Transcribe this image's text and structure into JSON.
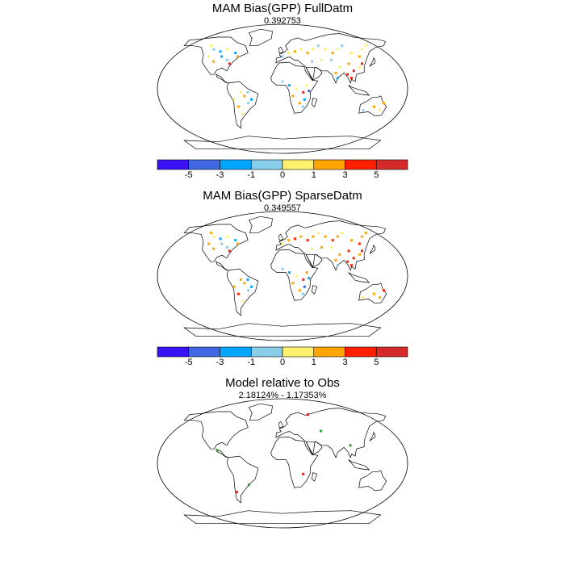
{
  "panels": [
    {
      "title": "MAM Bias(GPP) FullDatm",
      "subtitle": "0.392753",
      "has_colorbar": true,
      "points": [
        {
          "lon": -120,
          "lat": 60,
          "bin": 4
        },
        {
          "lon": -112,
          "lat": 55,
          "bin": 3
        },
        {
          "lon": -100,
          "lat": 52,
          "bin": 2
        },
        {
          "lon": -95,
          "lat": 45,
          "bin": 2
        },
        {
          "lon": -85,
          "lat": 40,
          "bin": 3
        },
        {
          "lon": -80,
          "lat": 35,
          "bin": 6
        },
        {
          "lon": -105,
          "lat": 38,
          "bin": 5
        },
        {
          "lon": -90,
          "lat": 55,
          "bin": 4
        },
        {
          "lon": -75,
          "lat": 50,
          "bin": 2
        },
        {
          "lon": -70,
          "lat": 45,
          "bin": 5
        },
        {
          "lon": -115,
          "lat": 45,
          "bin": 4
        },
        {
          "lon": -60,
          "lat": -5,
          "bin": 4
        },
        {
          "lon": -55,
          "lat": -10,
          "bin": 5
        },
        {
          "lon": -50,
          "lat": -20,
          "bin": 3
        },
        {
          "lon": -65,
          "lat": -25,
          "bin": 5
        },
        {
          "lon": -45,
          "lat": -15,
          "bin": 2
        },
        {
          "lon": -60,
          "lat": -35,
          "bin": 4
        },
        {
          "lon": -70,
          "lat": -15,
          "bin": 4
        },
        {
          "lon": -50,
          "lat": -5,
          "bin": 3
        },
        {
          "lon": 0,
          "lat": 45,
          "bin": 3
        },
        {
          "lon": 10,
          "lat": 50,
          "bin": 4
        },
        {
          "lon": 20,
          "lat": 52,
          "bin": 5
        },
        {
          "lon": 30,
          "lat": 55,
          "bin": 4
        },
        {
          "lon": 40,
          "lat": 50,
          "bin": 5
        },
        {
          "lon": 50,
          "lat": 55,
          "bin": 4
        },
        {
          "lon": 60,
          "lat": 60,
          "bin": 3
        },
        {
          "lon": 70,
          "lat": 55,
          "bin": 4
        },
        {
          "lon": 80,
          "lat": 50,
          "bin": 5
        },
        {
          "lon": 90,
          "lat": 55,
          "bin": 4
        },
        {
          "lon": 100,
          "lat": 60,
          "bin": 3
        },
        {
          "lon": 110,
          "lat": 50,
          "bin": 4
        },
        {
          "lon": 120,
          "lat": 45,
          "bin": 5
        },
        {
          "lon": 130,
          "lat": 55,
          "bin": 4
        },
        {
          "lon": 75,
          "lat": 40,
          "bin": 3
        },
        {
          "lon": 85,
          "lat": 30,
          "bin": 4
        },
        {
          "lon": 100,
          "lat": 35,
          "bin": 5
        },
        {
          "lon": 115,
          "lat": 30,
          "bin": 4
        },
        {
          "lon": 120,
          "lat": 35,
          "bin": 6
        },
        {
          "lon": 105,
          "lat": 25,
          "bin": 7
        },
        {
          "lon": 95,
          "lat": 20,
          "bin": 6
        },
        {
          "lon": 78,
          "lat": 22,
          "bin": 5
        },
        {
          "lon": 80,
          "lat": 15,
          "bin": 2
        },
        {
          "lon": 100,
          "lat": 15,
          "bin": 6
        },
        {
          "lon": 60,
          "lat": 40,
          "bin": 4
        },
        {
          "lon": 45,
          "lat": 38,
          "bin": 3
        },
        {
          "lon": 140,
          "lat": 60,
          "bin": 4
        },
        {
          "lon": 0,
          "lat": 10,
          "bin": 3
        },
        {
          "lon": 10,
          "lat": 5,
          "bin": 2
        },
        {
          "lon": 20,
          "lat": 0,
          "bin": 4
        },
        {
          "lon": 30,
          "lat": -5,
          "bin": 7
        },
        {
          "lon": 32,
          "lat": -15,
          "bin": 2
        },
        {
          "lon": 25,
          "lat": -20,
          "bin": 5
        },
        {
          "lon": 30,
          "lat": -25,
          "bin": 3
        },
        {
          "lon": 35,
          "lat": 5,
          "bin": 4
        },
        {
          "lon": 15,
          "lat": -10,
          "bin": 5
        },
        {
          "lon": 38,
          "lat": -3,
          "bin": 1
        },
        {
          "lon": 135,
          "lat": -25,
          "bin": 5
        },
        {
          "lon": 145,
          "lat": -30,
          "bin": 4
        },
        {
          "lon": 120,
          "lat": -30,
          "bin": 3
        },
        {
          "lon": 148,
          "lat": -20,
          "bin": 5
        }
      ]
    },
    {
      "title": "MAM Bias(GPP) SparseDatm",
      "subtitle": "0.349557",
      "has_colorbar": true,
      "points": [
        {
          "lon": -120,
          "lat": 60,
          "bin": 5
        },
        {
          "lon": -112,
          "lat": 55,
          "bin": 4
        },
        {
          "lon": -100,
          "lat": 52,
          "bin": 2
        },
        {
          "lon": -95,
          "lat": 45,
          "bin": 3
        },
        {
          "lon": -85,
          "lat": 40,
          "bin": 3
        },
        {
          "lon": -80,
          "lat": 35,
          "bin": 6
        },
        {
          "lon": -105,
          "lat": 38,
          "bin": 5
        },
        {
          "lon": -90,
          "lat": 55,
          "bin": 4
        },
        {
          "lon": -75,
          "lat": 50,
          "bin": 2
        },
        {
          "lon": -70,
          "lat": 45,
          "bin": 5
        },
        {
          "lon": -115,
          "lat": 45,
          "bin": 5
        },
        {
          "lon": -60,
          "lat": -5,
          "bin": 5
        },
        {
          "lon": -55,
          "lat": -10,
          "bin": 5
        },
        {
          "lon": -50,
          "lat": -20,
          "bin": 3
        },
        {
          "lon": -65,
          "lat": -25,
          "bin": 6
        },
        {
          "lon": -45,
          "lat": -15,
          "bin": 2
        },
        {
          "lon": -60,
          "lat": -35,
          "bin": 4
        },
        {
          "lon": -70,
          "lat": -15,
          "bin": 5
        },
        {
          "lon": -50,
          "lat": -5,
          "bin": 2
        },
        {
          "lon": 0,
          "lat": 45,
          "bin": 4
        },
        {
          "lon": 10,
          "lat": 50,
          "bin": 5
        },
        {
          "lon": 20,
          "lat": 52,
          "bin": 6
        },
        {
          "lon": 30,
          "lat": 55,
          "bin": 5
        },
        {
          "lon": 40,
          "lat": 50,
          "bin": 6
        },
        {
          "lon": 50,
          "lat": 55,
          "bin": 5
        },
        {
          "lon": 60,
          "lat": 60,
          "bin": 4
        },
        {
          "lon": 70,
          "lat": 55,
          "bin": 5
        },
        {
          "lon": 80,
          "lat": 50,
          "bin": 6
        },
        {
          "lon": 90,
          "lat": 55,
          "bin": 5
        },
        {
          "lon": 100,
          "lat": 60,
          "bin": 4
        },
        {
          "lon": 110,
          "lat": 50,
          "bin": 5
        },
        {
          "lon": 120,
          "lat": 45,
          "bin": 6
        },
        {
          "lon": 130,
          "lat": 55,
          "bin": 5
        },
        {
          "lon": 75,
          "lat": 40,
          "bin": 4
        },
        {
          "lon": 85,
          "lat": 30,
          "bin": 5
        },
        {
          "lon": 100,
          "lat": 35,
          "bin": 6
        },
        {
          "lon": 115,
          "lat": 30,
          "bin": 5
        },
        {
          "lon": 120,
          "lat": 35,
          "bin": 6
        },
        {
          "lon": 105,
          "lat": 25,
          "bin": 6
        },
        {
          "lon": 95,
          "lat": 20,
          "bin": 6
        },
        {
          "lon": 78,
          "lat": 22,
          "bin": 5
        },
        {
          "lon": 80,
          "lat": 15,
          "bin": 3
        },
        {
          "lon": 100,
          "lat": 15,
          "bin": 6
        },
        {
          "lon": 60,
          "lat": 40,
          "bin": 5
        },
        {
          "lon": 45,
          "lat": 38,
          "bin": 4
        },
        {
          "lon": 140,
          "lat": 60,
          "bin": 5
        },
        {
          "lon": 0,
          "lat": 10,
          "bin": 3
        },
        {
          "lon": 10,
          "lat": 5,
          "bin": 2
        },
        {
          "lon": 20,
          "lat": 0,
          "bin": 4
        },
        {
          "lon": 30,
          "lat": -5,
          "bin": 7
        },
        {
          "lon": 32,
          "lat": -15,
          "bin": 1
        },
        {
          "lon": 25,
          "lat": -20,
          "bin": 5
        },
        {
          "lon": 30,
          "lat": -25,
          "bin": 3
        },
        {
          "lon": 35,
          "lat": 5,
          "bin": 5
        },
        {
          "lon": 15,
          "lat": -10,
          "bin": 5
        },
        {
          "lon": 38,
          "lat": -3,
          "bin": 2
        },
        {
          "lon": 135,
          "lat": -25,
          "bin": 5
        },
        {
          "lon": 145,
          "lat": -30,
          "bin": 5
        },
        {
          "lon": 120,
          "lat": -30,
          "bin": 4
        },
        {
          "lon": 148,
          "lat": -20,
          "bin": 6
        }
      ]
    },
    {
      "title": "Model relative to Obs",
      "subtitle": "2.18124% - 1.17353%",
      "has_colorbar": false,
      "points": [
        {
          "lon": -95,
          "lat": 18,
          "color": "#2ca02c"
        },
        {
          "lon": -70,
          "lat": -40,
          "color": "#d62728"
        },
        {
          "lon": -50,
          "lat": -30,
          "color": "#2ca02c"
        },
        {
          "lon": 30,
          "lat": -15,
          "color": "#d62728"
        },
        {
          "lon": 100,
          "lat": 25,
          "color": "#2ca02c"
        },
        {
          "lon": 45,
          "lat": 68,
          "color": "#d62728"
        },
        {
          "lon": 60,
          "lat": 45,
          "color": "#2ca02c"
        }
      ]
    }
  ],
  "colorbar": {
    "colors": [
      "#3a12f5",
      "#4169e1",
      "#00a6ff",
      "#87ceeb",
      "#fff06e",
      "#ffa500",
      "#ff2000",
      "#d62a2a"
    ],
    "labels": [
      "-5",
      "-3",
      "-1",
      "0",
      "1",
      "3",
      "5"
    ]
  }
}
